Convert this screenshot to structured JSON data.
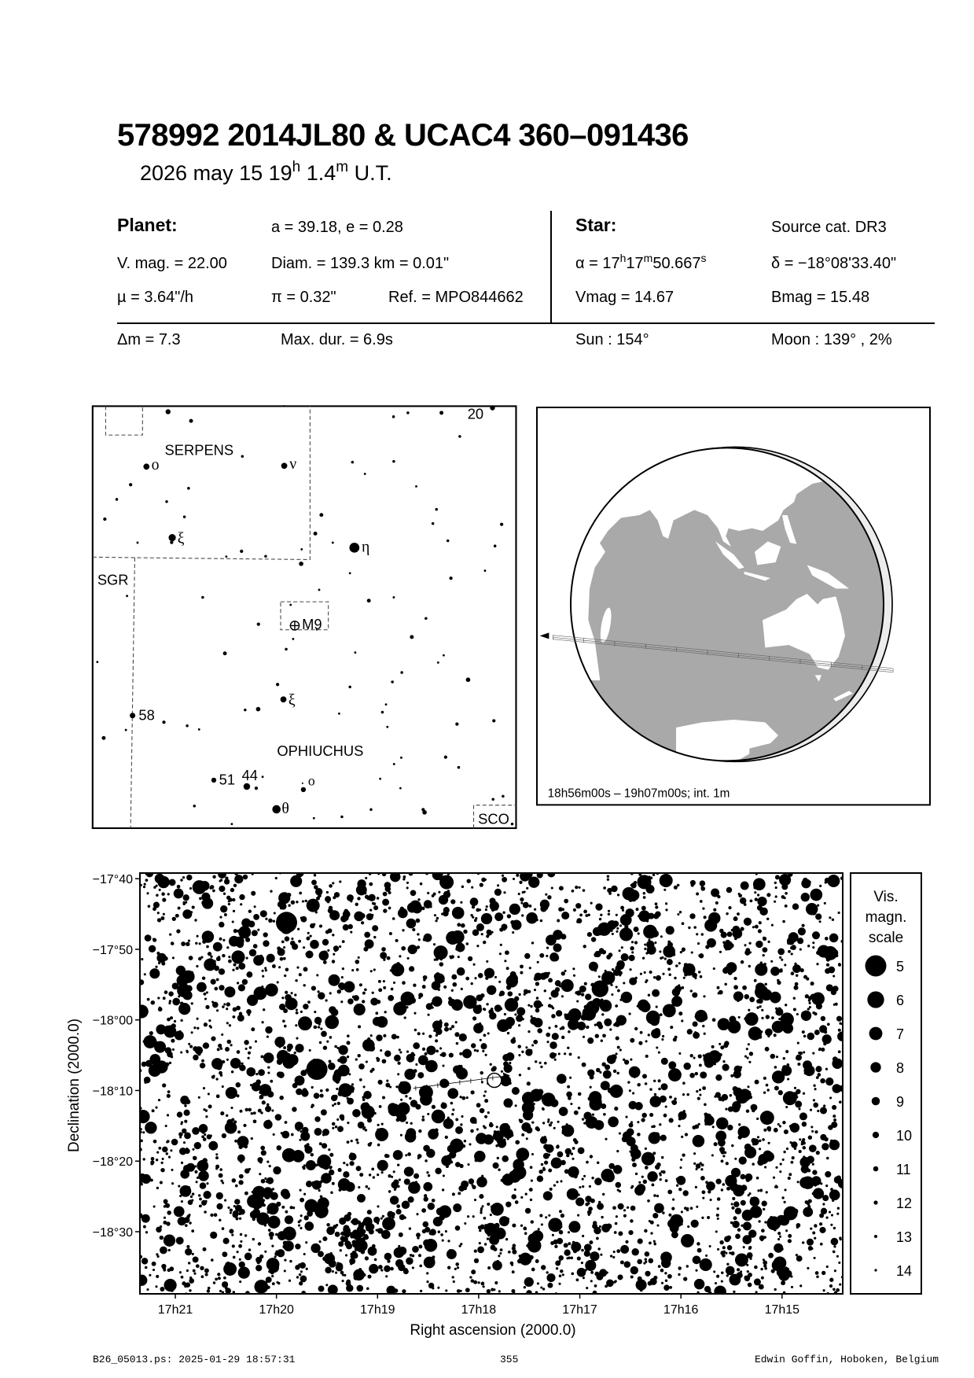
{
  "header": {
    "title": "578992 2014JL80  &  UCAC4 360–091436",
    "date": "2026 may 15  19",
    "hour_unit": "h",
    "minutes": " 1.4",
    "minute_unit": "m",
    "timescale": " U.T."
  },
  "planet": {
    "label": "Planet:",
    "orbit": "a = 39.18, e = 0.28",
    "vmag": "V. mag. = 22.00",
    "diam": "Diam. = 139.3 km = 0.01\"",
    "mu": "µ =  3.64\"/h",
    "parallax": "π =  0.32\"",
    "ref": "Ref. = MPO844662"
  },
  "star": {
    "label": "Star:",
    "source": "Source cat.  DR3",
    "ra_prefix": "α = 17",
    "ra_h": "h",
    "ra_mid": "17",
    "ra_m": "m",
    "ra_sec": "50.667",
    "ra_s": "s",
    "dec": "δ = −18°08'33.40\"",
    "vmag": "Vmag = 14.67",
    "bmag": "Bmag = 15.48"
  },
  "event": {
    "delta_m": "Δm = 7.3",
    "max_dur": "Max. dur. = 6.9s",
    "sun": "Sun : 154°",
    "moon": "Moon : 139° ,  2%"
  },
  "finder_chart": {
    "constellations": [
      "SERPENS",
      "SGR",
      "OPHIUCHUS",
      "SCO"
    ],
    "labels": {
      "star_20": "20",
      "omicron_ser": "ο",
      "nu": "ν",
      "xi_ser": "ξ",
      "eta": "η",
      "m9": "M9",
      "xi_oph": "ξ",
      "n58": "58",
      "n51": "51",
      "n44": "44",
      "omicron_oph": "ο",
      "theta": "θ"
    }
  },
  "earth_map": {
    "caption": "18h56m00s – 19h07m00s; int.  1m",
    "colors": {
      "ocean": "#a9a9a9",
      "land": "#ffffff",
      "night_limb": "#ececec"
    }
  },
  "chart_data": {
    "type": "scatter",
    "xlabel": "Right ascension (2000.0)",
    "ylabel": "Declination (2000.0)",
    "x_ticks": [
      "17h21",
      "17h20",
      "17h19",
      "17h18",
      "17h17",
      "17h16",
      "17h15"
    ],
    "x_tick_minutes": [
      21,
      20,
      19,
      18,
      17,
      16,
      15
    ],
    "x_range_ra_minutes_after_17h": [
      21.35,
      14.4
    ],
    "y_ticks": [
      "−17°40",
      "−17°50",
      "−18°00",
      "−18°10",
      "−18°20",
      "−18°30"
    ],
    "y_tick_arcmin": [
      -1060,
      -1070,
      -1080,
      -1090,
      -1100,
      -1110
    ],
    "y_range_arcmin": [
      -1059.2,
      -1118.8
    ],
    "grid": false,
    "target": {
      "ra_min": 17.845,
      "dec_arcmin": -1088.56
    },
    "bright_stars": [
      {
        "ra_min": 19.9,
        "dec_arcmin": -1066.2,
        "mag": 5
      },
      {
        "ra_min": 19.6,
        "dec_arcmin": -1087.0,
        "mag": 5
      },
      {
        "ra_min": 16.8,
        "dec_arcmin": -1075.6,
        "mag": 6
      },
      {
        "ra_min": 21.25,
        "dec_arcmin": -1083.1,
        "mag": 7
      },
      {
        "ra_min": 17.05,
        "dec_arcmin": -1079.3,
        "mag": 7
      },
      {
        "ra_min": 15.4,
        "dec_arcmin": -1114.0,
        "mag": 7
      }
    ],
    "legend": {
      "title_lines": [
        "Vis.",
        "magn.",
        "scale"
      ],
      "magnitudes": [
        "5",
        "6",
        "7",
        "8",
        "9",
        "10",
        "11",
        "12",
        "13",
        "14"
      ],
      "placement": "right"
    }
  },
  "footer": {
    "file": "B26_05013.ps: 2025-01-29 18:57:31",
    "page": "355",
    "author": "Edwin Goffin, Hoboken, Belgium"
  }
}
